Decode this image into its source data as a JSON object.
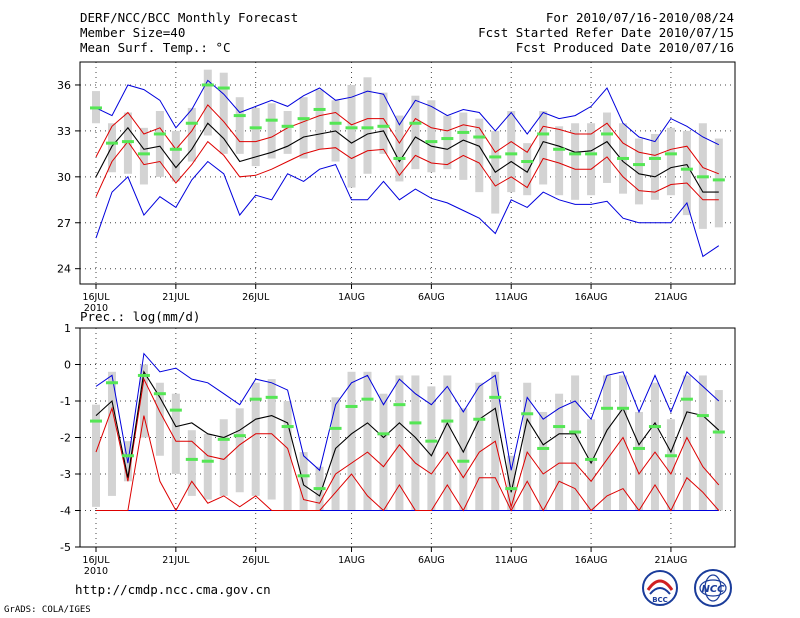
{
  "header": {
    "title": "DERF/NCC/BCC Monthly Forecast",
    "member_size": "Member Size=40",
    "variable": "Mean Surf. Temp.: °C",
    "for_range": "For 2010/07/16-2010/08/24",
    "started": "Fcst Started Refer Date 2010/07/15",
    "produced": "Fcst Produced Date 2010/07/16"
  },
  "footer": {
    "url": "http://cmdp.ncc.cma.gov.cn",
    "credit": "GrADS: COLA/IGES"
  },
  "logos": {
    "left": "BCC",
    "right": "NCC"
  },
  "colors": {
    "green": "#55e655",
    "gray": "#d3d3d3",
    "red": "#dd0000",
    "blue": "#0000dd",
    "black": "#000000"
  },
  "chart_data": [
    {
      "type": "line",
      "title": "Mean Surf. Temp.: °C",
      "xlabel": "",
      "ylabel": "",
      "x_tick_labels": [
        "16JUL",
        "21JUL",
        "26JUL",
        "1AUG",
        "6AUG",
        "11AUG",
        "16AUG",
        "21AUG"
      ],
      "x_tick_days": [
        0,
        5,
        10,
        16,
        21,
        26,
        31,
        36
      ],
      "x_sublabel": "2010",
      "ylim": [
        23,
        37.5
      ],
      "yticks": [
        24,
        27,
        30,
        33,
        36
      ],
      "days": 40,
      "grid": true,
      "series": [
        {
          "name": "green_member_mark",
          "values": [
            34.5,
            32.2,
            32.3,
            31.5,
            32.8,
            31.8,
            33.5,
            36.0,
            35.8,
            34.0,
            33.2,
            33.7,
            33.3,
            33.8,
            34.4,
            33.5,
            33.2,
            33.2,
            33.3,
            31.2,
            33.5,
            32.3,
            32.5,
            32.9,
            32.6,
            31.3,
            31.5,
            31.0,
            32.8,
            31.8,
            31.5,
            31.5,
            32.8,
            31.2,
            30.8,
            31.2,
            31.5,
            30.5,
            30.0,
            29.8
          ]
        },
        {
          "name": "box_top",
          "values": [
            35.6,
            33.5,
            34.2,
            33.2,
            34.3,
            33.0,
            34.5,
            37.0,
            36.8,
            35.2,
            34.5,
            34.8,
            34.3,
            35.2,
            35.7,
            35.0,
            36.0,
            36.5,
            35.5,
            34.0,
            35.3,
            35.0,
            34.0,
            34.2,
            33.8,
            33.0,
            34.3,
            32.2,
            34.3,
            33.3,
            33.5,
            33.5,
            34.2,
            33.5,
            32.5,
            32.8,
            33.2,
            33.0,
            33.5,
            32.5
          ]
        },
        {
          "name": "box_bottom",
          "values": [
            33.5,
            30.3,
            30.2,
            29.5,
            30.0,
            29.7,
            31.0,
            32.7,
            31.5,
            31.5,
            30.7,
            31.2,
            31.5,
            31.2,
            31.8,
            31.0,
            29.3,
            30.2,
            31.5,
            29.7,
            30.5,
            30.3,
            30.5,
            29.8,
            29.0,
            27.6,
            29.0,
            28.8,
            29.5,
            28.8,
            28.5,
            28.8,
            29.6,
            28.9,
            28.2,
            28.5,
            28.8,
            27.5,
            26.6,
            26.7
          ]
        },
        {
          "name": "mean",
          "values": [
            30.0,
            32.0,
            33.2,
            31.8,
            32.0,
            30.6,
            31.8,
            33.5,
            32.5,
            31.0,
            31.3,
            31.6,
            32.0,
            32.6,
            32.8,
            33.0,
            32.2,
            32.8,
            33.0,
            31.0,
            32.6,
            32.0,
            31.8,
            32.4,
            32.0,
            30.3,
            31.0,
            30.3,
            32.3,
            32.0,
            31.6,
            31.7,
            32.3,
            31.0,
            30.2,
            30.0,
            30.6,
            30.8,
            29.0,
            29.0
          ]
        },
        {
          "name": "red_upper",
          "values": [
            31.3,
            33.3,
            34.2,
            32.8,
            33.2,
            31.8,
            33.0,
            34.7,
            33.6,
            32.3,
            32.3,
            32.6,
            33.2,
            33.6,
            34.0,
            34.2,
            33.4,
            33.8,
            33.8,
            32.2,
            33.8,
            33.2,
            33.0,
            33.4,
            33.2,
            31.6,
            32.3,
            31.6,
            33.3,
            33.1,
            32.8,
            32.8,
            33.5,
            32.2,
            31.6,
            31.4,
            31.8,
            32.0,
            30.6,
            30.2
          ]
        },
        {
          "name": "red_lower",
          "values": [
            28.7,
            31.0,
            32.3,
            30.8,
            31.0,
            29.6,
            30.8,
            32.3,
            31.4,
            30.0,
            30.1,
            30.5,
            31.0,
            31.5,
            31.8,
            31.9,
            31.2,
            31.7,
            31.8,
            30.1,
            31.4,
            30.9,
            30.8,
            31.4,
            30.9,
            29.4,
            30.0,
            29.3,
            31.2,
            30.9,
            30.5,
            30.5,
            31.3,
            30.0,
            29.1,
            29.0,
            29.5,
            29.6,
            28.5,
            28.5
          ]
        },
        {
          "name": "blue_upper",
          "values": [
            34.5,
            34.0,
            36.0,
            35.7,
            35.0,
            33.2,
            34.4,
            36.3,
            35.4,
            34.2,
            34.6,
            35.0,
            34.6,
            35.3,
            35.8,
            35.0,
            35.2,
            35.6,
            35.4,
            33.4,
            35.0,
            34.6,
            34.0,
            34.4,
            34.2,
            33.0,
            34.2,
            32.8,
            34.2,
            33.8,
            34.0,
            34.6,
            35.8,
            33.5,
            32.6,
            32.3,
            33.8,
            33.3,
            32.6,
            32.1
          ]
        },
        {
          "name": "blue_lower",
          "values": [
            26.0,
            29.0,
            30.0,
            27.5,
            28.7,
            28.0,
            29.8,
            31.0,
            30.2,
            27.5,
            28.8,
            28.5,
            30.2,
            29.7,
            30.5,
            30.8,
            28.5,
            28.5,
            29.7,
            28.5,
            29.2,
            28.6,
            28.3,
            27.8,
            27.3,
            26.3,
            28.5,
            28.0,
            29.0,
            28.5,
            28.2,
            28.2,
            28.4,
            27.3,
            27.0,
            27.0,
            27.0,
            28.3,
            24.8,
            25.5
          ]
        }
      ]
    },
    {
      "type": "line",
      "title": "Prec.: log(mm/d)",
      "xlabel": "",
      "ylabel": "",
      "x_tick_labels": [
        "16JUL",
        "21JUL",
        "26JUL",
        "1AUG",
        "6AUG",
        "11AUG",
        "16AUG",
        "21AUG"
      ],
      "x_tick_days": [
        0,
        5,
        10,
        16,
        21,
        26,
        31,
        36
      ],
      "x_sublabel": "2010",
      "ylim": [
        -5,
        1
      ],
      "yticks": [
        -5,
        -4,
        -3,
        -2,
        -1,
        0,
        1
      ],
      "days": 40,
      "grid": true,
      "series": [
        {
          "name": "green_member_mark",
          "values": [
            -1.55,
            -0.5,
            -2.5,
            -0.3,
            -0.8,
            -1.25,
            -2.6,
            -2.65,
            -2.05,
            -1.95,
            -0.95,
            -0.9,
            -1.7,
            -3.05,
            -3.4,
            -1.75,
            -1.15,
            -0.95,
            -1.9,
            -1.1,
            -1.6,
            -2.1,
            -1.55,
            -2.65,
            -1.5,
            -0.9,
            -3.4,
            -1.35,
            -2.3,
            -1.7,
            -1.85,
            -2.6,
            -1.2,
            -1.2,
            -2.3,
            -1.7,
            -2.5,
            -0.95,
            -1.4,
            -1.85
          ]
        },
        {
          "name": "box_top",
          "values": [
            -1.1,
            -0.2,
            -2.1,
            0.0,
            -0.5,
            -0.8,
            -1.8,
            -1.9,
            -1.5,
            -1.2,
            -0.5,
            -0.4,
            -1.0,
            -2.4,
            -2.8,
            -0.9,
            -0.2,
            -0.2,
            -0.8,
            -0.3,
            -0.3,
            -0.6,
            -0.3,
            -1.2,
            -0.5,
            -0.2,
            -2.5,
            -0.5,
            -1.3,
            -0.8,
            -0.3,
            -1.5,
            -0.3,
            -0.3,
            -1.3,
            -0.5,
            -1.5,
            -0.3,
            -0.3,
            -0.7
          ]
        },
        {
          "name": "box_bottom",
          "values": [
            -3.9,
            -3.6,
            -3.2,
            -2.0,
            -2.5,
            -3.0,
            -3.6,
            -3.7,
            -3.6,
            -3.5,
            -3.6,
            -3.7,
            -4.0,
            -4.0,
            -4.0,
            -4.0,
            -4.0,
            -4.0,
            -4.0,
            -4.0,
            -4.0,
            -4.0,
            -4.0,
            -4.0,
            -4.0,
            -4.0,
            -4.0,
            -4.0,
            -4.0,
            -4.0,
            -4.0,
            -4.0,
            -4.0,
            -4.0,
            -4.0,
            -4.0,
            -4.0,
            -4.0,
            -4.0,
            -4.0
          ]
        },
        {
          "name": "mean",
          "values": [
            -1.4,
            -1.0,
            -3.1,
            -0.2,
            -0.9,
            -1.7,
            -1.6,
            -1.9,
            -2.0,
            -1.8,
            -1.5,
            -1.4,
            -1.6,
            -3.3,
            -3.6,
            -2.3,
            -1.9,
            -1.6,
            -2.0,
            -1.6,
            -2.0,
            -2.5,
            -1.6,
            -2.4,
            -1.5,
            -1.2,
            -3.5,
            -1.5,
            -2.2,
            -1.9,
            -1.9,
            -2.7,
            -1.8,
            -1.2,
            -2.2,
            -1.6,
            -2.4,
            -1.3,
            -1.4,
            -1.8
          ]
        },
        {
          "name": "red_upper",
          "values": [
            -2.4,
            -1.2,
            -3.2,
            -0.4,
            -1.3,
            -2.1,
            -2.1,
            -2.5,
            -2.6,
            -2.2,
            -1.9,
            -1.9,
            -2.3,
            -3.7,
            -3.8,
            -3.0,
            -2.7,
            -2.4,
            -2.8,
            -2.2,
            -2.7,
            -3.0,
            -2.4,
            -3.1,
            -2.4,
            -2.1,
            -3.9,
            -2.4,
            -3.0,
            -2.7,
            -2.7,
            -3.2,
            -2.6,
            -2.0,
            -3.0,
            -2.4,
            -3.0,
            -2.0,
            -2.8,
            -3.3
          ]
        },
        {
          "name": "red_lower",
          "values": [
            -4.0,
            -4.0,
            -4.0,
            -1.4,
            -3.2,
            -4.0,
            -3.2,
            -3.8,
            -3.6,
            -3.9,
            -3.6,
            -4.0,
            -4.0,
            -4.0,
            -4.0,
            -3.5,
            -3.0,
            -3.6,
            -4.0,
            -3.3,
            -4.0,
            -4.0,
            -3.3,
            -4.0,
            -3.1,
            -3.1,
            -4.0,
            -3.2,
            -4.0,
            -3.2,
            -3.4,
            -4.0,
            -3.6,
            -3.4,
            -4.0,
            -3.3,
            -4.0,
            -3.1,
            -3.5,
            -4.0
          ]
        },
        {
          "name": "blue_upper",
          "values": [
            -0.6,
            -0.3,
            -2.7,
            0.3,
            -0.2,
            -0.1,
            -0.4,
            -0.5,
            -0.8,
            -1.1,
            -0.4,
            -0.5,
            -0.7,
            -2.5,
            -2.9,
            -1.1,
            -0.5,
            -0.3,
            -1.1,
            -0.4,
            -0.8,
            -1.1,
            -0.6,
            -1.3,
            -0.6,
            -0.3,
            -2.9,
            -0.9,
            -1.5,
            -1.2,
            -1.0,
            -1.5,
            -0.3,
            -0.2,
            -1.3,
            -0.3,
            -1.3,
            -0.2,
            -0.6,
            -1.0
          ]
        },
        {
          "name": "blue_lower",
          "values": [
            -4.0,
            -4.0,
            -4.0,
            -4.0,
            -4.0,
            -4.0,
            -4.0,
            -4.0,
            -4.0,
            -4.0,
            -4.0,
            -4.0,
            -4.0,
            -4.0,
            -4.0,
            -4.0,
            -4.0,
            -4.0,
            -4.0,
            -4.0,
            -4.0,
            -4.0,
            -4.0,
            -4.0,
            -4.0,
            -4.0,
            -4.0,
            -4.0,
            -4.0,
            -4.0,
            -4.0,
            -4.0,
            -4.0,
            -4.0,
            -4.0,
            -4.0,
            -4.0,
            -4.0,
            -4.0,
            -4.0
          ]
        }
      ]
    }
  ]
}
